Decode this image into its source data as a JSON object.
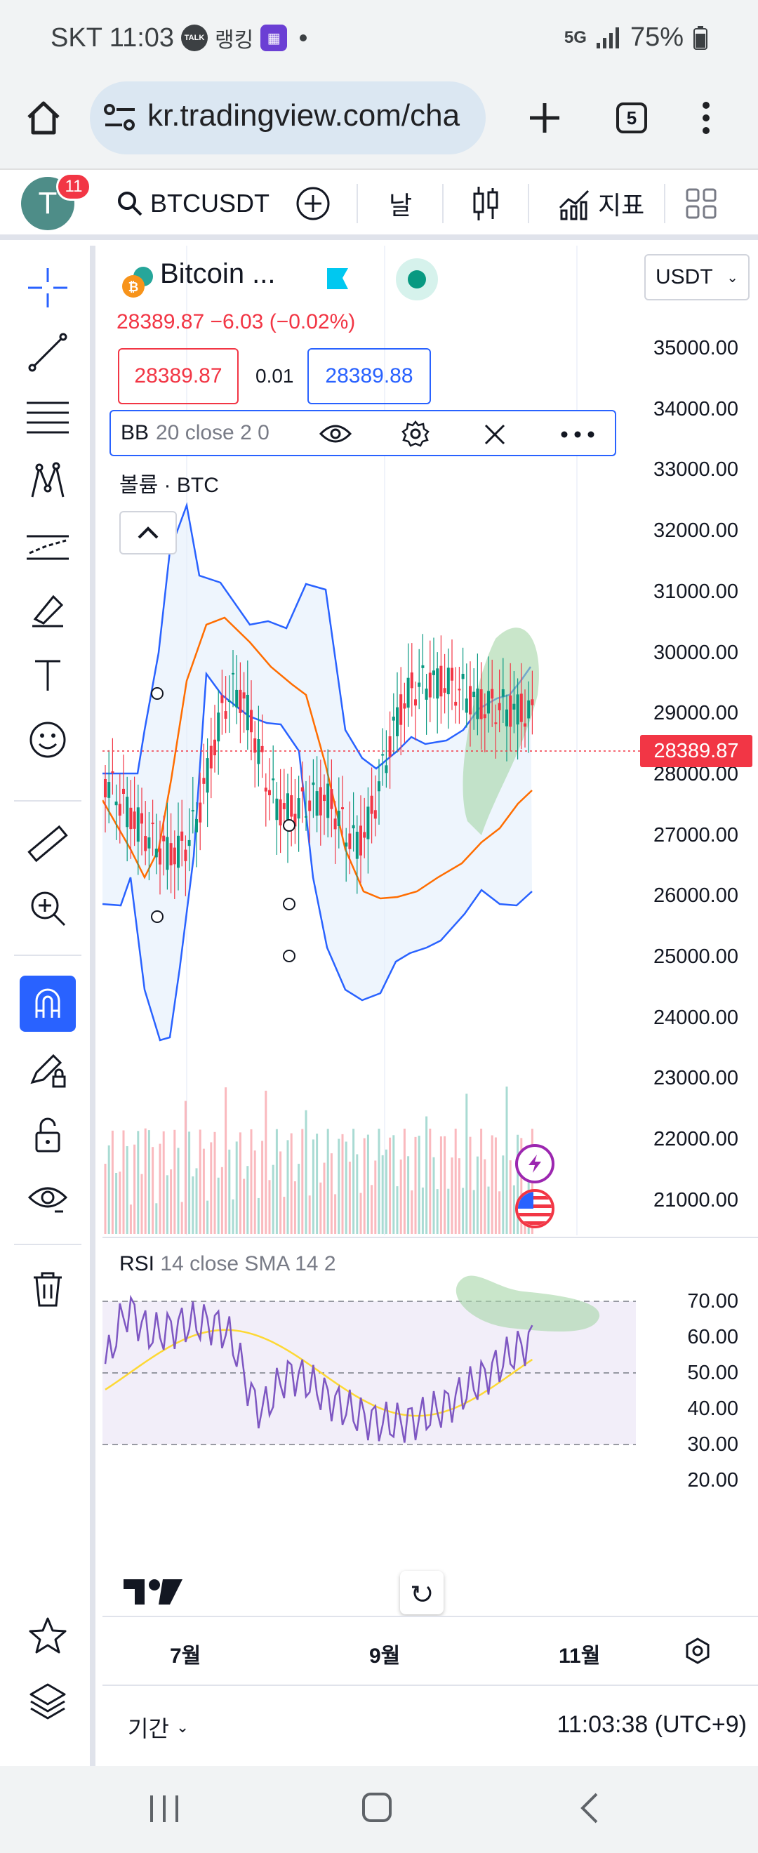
{
  "status": {
    "carrier_time": "SKT 11:03",
    "talk_badge": "TALK",
    "app_label": "랭킹",
    "network": "5G",
    "battery": "75%"
  },
  "browser": {
    "url": "kr.tradingview.com/cha",
    "tab_count": "5"
  },
  "toolbar": {
    "avatar_letter": "T",
    "notifications": "11",
    "symbol": "BTCUSDT",
    "interval": "날",
    "indicators": "지표"
  },
  "chart": {
    "title": "Bitcoin ...",
    "change_line": "28389.87  −6.03 (−0.02%)",
    "bid": "28389.87",
    "spread": "0.01",
    "ask": "28389.88",
    "indicator_name": "BB",
    "indicator_params": "20 close 2 0",
    "volume_label": "볼륨 · BTC",
    "currency": "USDT",
    "current_price_tag": "28389.87",
    "y_labels": [
      "35000.00",
      "34000.00",
      "33000.00",
      "32000.00",
      "31000.00",
      "30000.00",
      "29000.00",
      "28000.00",
      "27000.00",
      "26000.00",
      "25000.00",
      "24000.00",
      "23000.00",
      "22000.00",
      "21000.00"
    ]
  },
  "rsi": {
    "name": "RSI",
    "params": "14 close SMA 14 2",
    "y_labels": [
      "70.00",
      "60.00",
      "50.00",
      "40.00",
      "30.00",
      "20.00"
    ]
  },
  "x_axis": {
    "labels": [
      "7월",
      "9월",
      "11월"
    ]
  },
  "bottom": {
    "range_label": "기간",
    "clock": "11:03:38 (UTC+9)"
  },
  "colors": {
    "up": "#089981",
    "down": "#f23645",
    "bb_band": "#2962ff",
    "bb_basis": "#ff6d00",
    "rsi_line": "#7e57c2",
    "rsi_sma": "#fdd835",
    "accent": "#2962ff"
  }
}
